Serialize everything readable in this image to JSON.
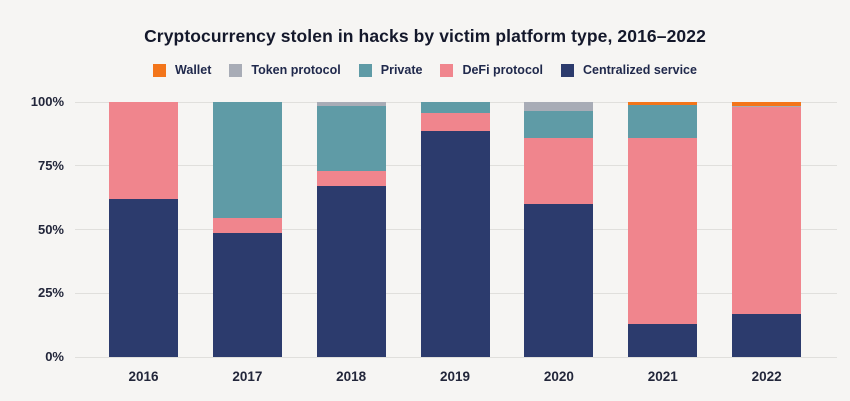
{
  "title": "Cryptocurrency stolen in hacks by victim platform type, 2016–2022",
  "colors": {
    "background": "#F6F5F3",
    "gridline": "#E0DFDC",
    "title_text": "#14182B",
    "axis_text": "#22263A",
    "legend_text": "#20294C",
    "wallet": "#F3751A",
    "token_protocol": "#A8ACB6",
    "private": "#5F9BA6",
    "defi_protocol": "#F0858D",
    "centralized_service": "#2C3B6D"
  },
  "legend": {
    "items": [
      {
        "label": "Wallet",
        "color": "#F3751A"
      },
      {
        "label": "Token protocol",
        "color": "#A8ACB6"
      },
      {
        "label": "Private",
        "color": "#5F9BA6"
      },
      {
        "label": "DeFi protocol",
        "color": "#F0858D"
      },
      {
        "label": "Centralized service",
        "color": "#2C3B6D"
      }
    ]
  },
  "chart_data": {
    "type": "bar",
    "stacked": true,
    "title": "Cryptocurrency stolen in hacks by victim platform type, 2016–2022",
    "categories": [
      "2016",
      "2017",
      "2018",
      "2019",
      "2020",
      "2021",
      "2022"
    ],
    "series": [
      {
        "name": "Centralized service",
        "color": "#2C3B6D",
        "values": [
          62,
          48.5,
          67,
          88.5,
          60,
          13,
          17
        ]
      },
      {
        "name": "DeFi protocol",
        "color": "#F0858D",
        "values": [
          38,
          6,
          6,
          7,
          26,
          73,
          81
        ]
      },
      {
        "name": "Private",
        "color": "#5F9BA6",
        "values": [
          0,
          45.5,
          25.5,
          4.5,
          10.5,
          13,
          0
        ]
      },
      {
        "name": "Token protocol",
        "color": "#A8ACB6",
        "values": [
          0,
          0,
          1.5,
          0,
          3.5,
          0,
          0.5
        ]
      },
      {
        "name": "Wallet",
        "color": "#F3751A",
        "values": [
          0,
          0,
          0,
          0,
          0,
          1,
          1.5
        ]
      }
    ],
    "xlabel": "",
    "ylabel": "",
    "ylim": [
      0,
      100
    ],
    "y_ticks": [
      0,
      25,
      50,
      75,
      100
    ],
    "y_tick_labels": [
      "0%",
      "25%",
      "50%",
      "75%",
      "100%"
    ],
    "grid": true,
    "legend_position": "top"
  }
}
